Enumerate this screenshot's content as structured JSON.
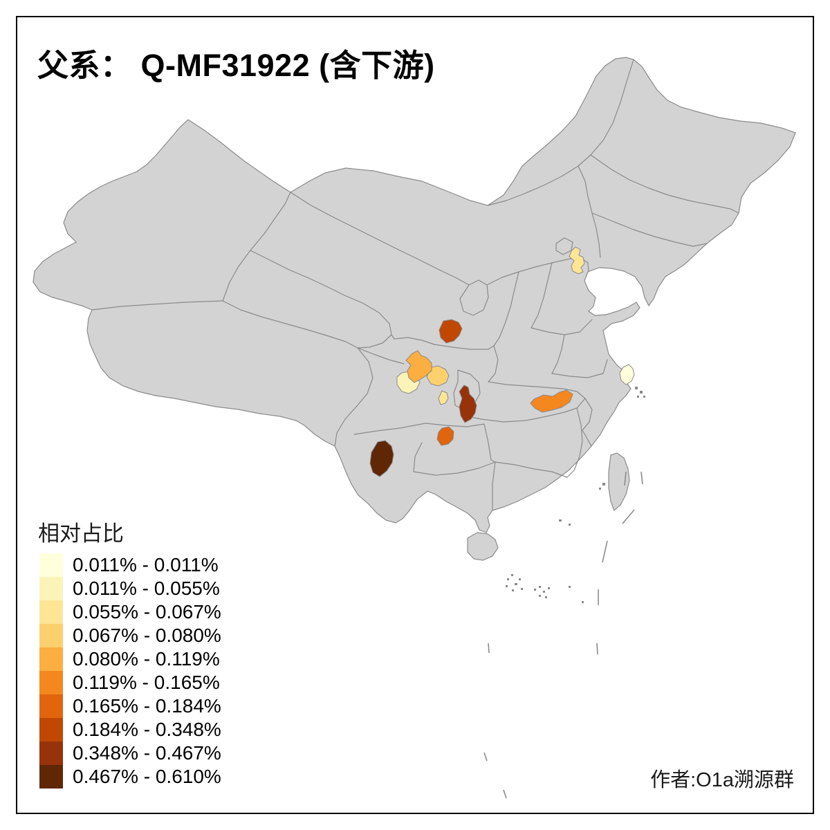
{
  "title": "父系： Q-MF31922 (含下游)",
  "attribution": "作者:O1a溯源群",
  "legend": {
    "title": "相对占比",
    "items": [
      {
        "label": "0.011% - 0.011%",
        "color": "#FFFFDC"
      },
      {
        "label": "0.011% - 0.055%",
        "color": "#FCF3B9"
      },
      {
        "label": "0.055% - 0.067%",
        "color": "#FDE596"
      },
      {
        "label": "0.067% - 0.080%",
        "color": "#FDD06E"
      },
      {
        "label": "0.080% - 0.119%",
        "color": "#FCAE40"
      },
      {
        "label": "0.119% - 0.165%",
        "color": "#F5871F"
      },
      {
        "label": "0.165% - 0.184%",
        "color": "#E0650D"
      },
      {
        "label": "0.184% - 0.348%",
        "color": "#C04803"
      },
      {
        "label": "0.348% - 0.467%",
        "color": "#96330A"
      },
      {
        "label": "0.467% - 0.610%",
        "color": "#602706"
      }
    ]
  },
  "map": {
    "background": "#FFFFFF",
    "land_fill": "#D3D3D3",
    "border_color": "#8A8A8A",
    "frame_color": "#000000",
    "highlighted_regions": [
      {
        "name": "near-shanghai",
        "bin": "0.011% - 0.011%",
        "color": "#FFFFDC"
      },
      {
        "name": "w-sichuan",
        "bin": "0.011% - 0.055%",
        "color": "#FCF3B9"
      },
      {
        "name": "near-tianjin",
        "bin": "0.055% - 0.067%",
        "color": "#FDE596"
      },
      {
        "name": "s-sichuan",
        "bin": "0.055% - 0.067%",
        "color": "#FDE596"
      },
      {
        "name": "c-sichuan",
        "bin": "0.067% - 0.080%",
        "color": "#FDD06E"
      },
      {
        "name": "nw-sichuan",
        "bin": "0.080% - 0.119%",
        "color": "#FCAE40"
      },
      {
        "name": "n-hunan-strip",
        "bin": "0.119% - 0.165%",
        "color": "#F5871F"
      },
      {
        "name": "c-guizhou",
        "bin": "0.165% - 0.184%",
        "color": "#E0650D"
      },
      {
        "name": "s-gansu",
        "bin": "0.184% - 0.348%",
        "color": "#C04803"
      },
      {
        "name": "w-hunan-hubei",
        "bin": "0.348% - 0.467%",
        "color": "#96330A"
      },
      {
        "name": "c-yunnan",
        "bin": "0.467% - 0.610%",
        "color": "#602706"
      }
    ]
  }
}
